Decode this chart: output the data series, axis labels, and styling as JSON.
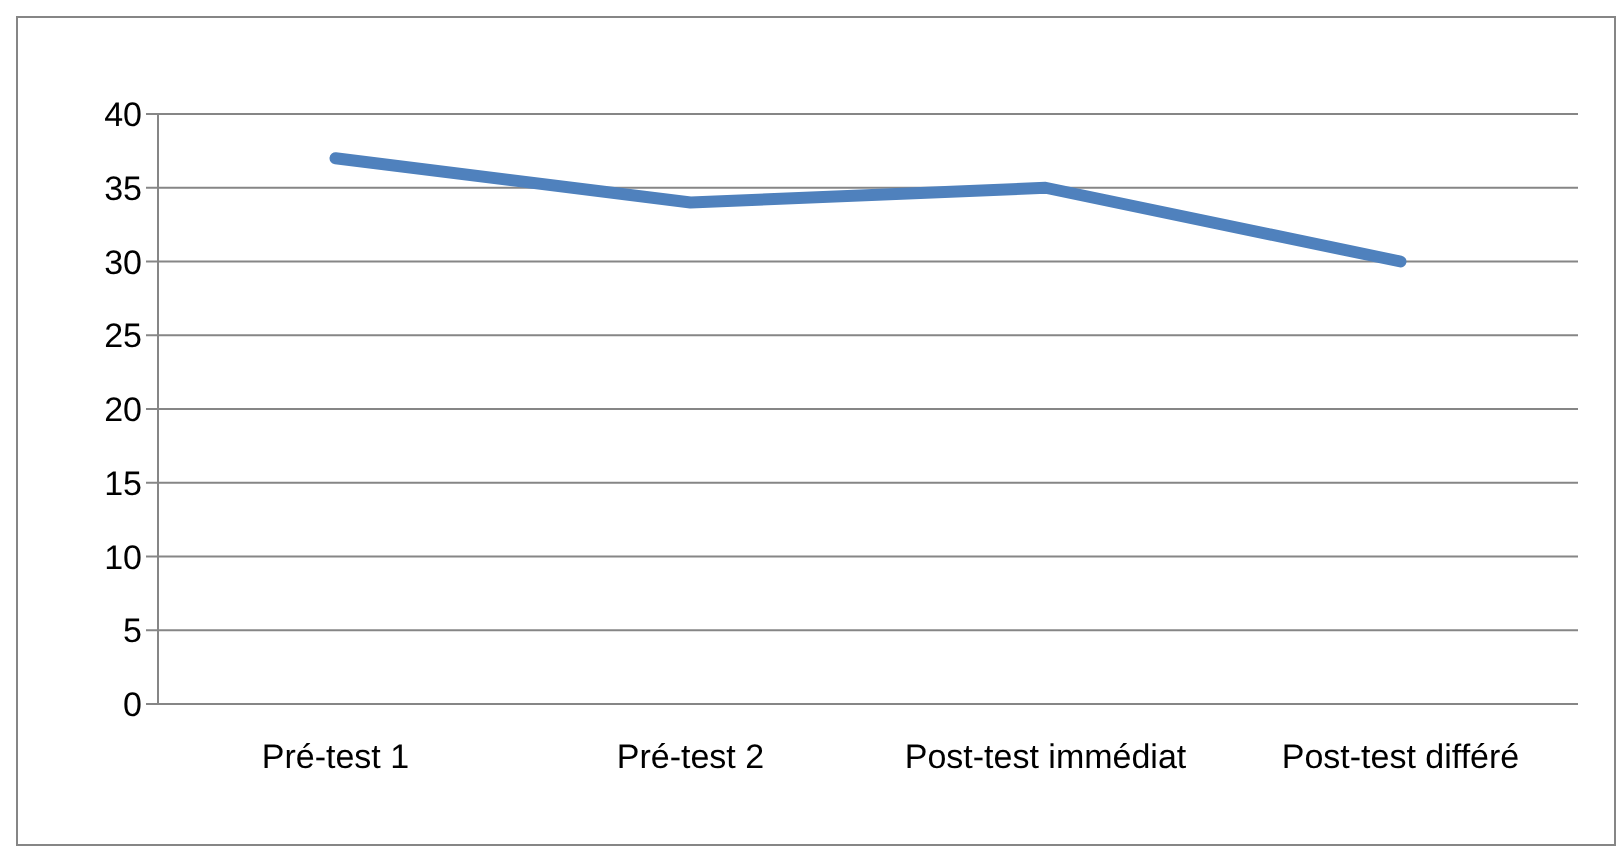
{
  "chart_data": {
    "type": "line",
    "categories": [
      "Pré-test 1",
      "Pré-test 2",
      "Post-test immédiat",
      "Post-test différé"
    ],
    "series": [
      {
        "color": "#4f81bd",
        "values": [
          37,
          34,
          35,
          30
        ]
      }
    ],
    "ylim": [
      0,
      40
    ],
    "yticks": [
      0,
      5,
      10,
      15,
      20,
      25,
      30,
      35,
      40
    ],
    "grid": "y",
    "legend": false,
    "marker": "none",
    "line_style": "solid"
  }
}
